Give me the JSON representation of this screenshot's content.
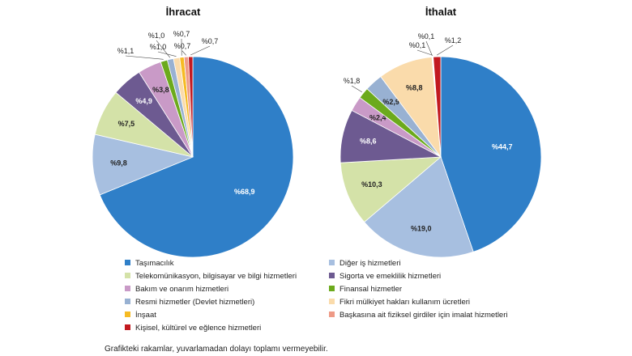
{
  "chart_data": [
    {
      "type": "pie",
      "title": "İhracat",
      "slices": [
        {
          "category": "Taşımacılık",
          "value": 68.9,
          "label": "%68,9"
        },
        {
          "category": "Diğer iş hizmetleri",
          "value": 9.8,
          "label": "%9,8"
        },
        {
          "category": "Telekomünikasyon, bilgisayar ve bilgi hizmetleri",
          "value": 7.5,
          "label": "%7,5"
        },
        {
          "category": "Sigorta ve emeklilik hizmetleri",
          "value": 4.9,
          "label": "%4,9"
        },
        {
          "category": "Bakım ve onarım hizmetleri",
          "value": 3.8,
          "label": "%3,8"
        },
        {
          "category": "Finansal hizmetler",
          "value": 1.1,
          "label": "%1,1"
        },
        {
          "category": "Resmi hizmetler (Devlet hizmetleri)",
          "value": 1.0,
          "label": "%1,0"
        },
        {
          "category": "Fikri mülkiyet hakları kullanım ücretleri",
          "value": 1.0,
          "label": "%1,0"
        },
        {
          "category": "İnşaat",
          "value": 0.7,
          "label": "%0,7"
        },
        {
          "category": "Başkasına ait fiziksel girdiler için imalat hizmetleri",
          "value": 0.7,
          "label": "%0,7"
        },
        {
          "category": "Kişisel, kültürel ve eğlence hizmetleri",
          "value": 0.7,
          "label": "%0,7"
        }
      ]
    },
    {
      "type": "pie",
      "title": "İthalat",
      "slices": [
        {
          "category": "Taşımacılık",
          "value": 44.7,
          "label": "%44,7"
        },
        {
          "category": "Diğer iş hizmetleri",
          "value": 19.0,
          "label": "%19,0"
        },
        {
          "category": "Telekomünikasyon, bilgisayar ve bilgi hizmetleri",
          "value": 10.3,
          "label": "%10,3"
        },
        {
          "category": "Sigorta ve emeklilik hizmetleri",
          "value": 8.6,
          "label": "%8,6"
        },
        {
          "category": "Bakım ve onarım hizmetleri",
          "value": 2.4,
          "label": "%2,4"
        },
        {
          "category": "Finansal hizmetler",
          "value": 1.8,
          "label": "%1,8"
        },
        {
          "category": "Resmi hizmetler (Devlet hizmetleri)",
          "value": 2.9,
          "label": "%2,9"
        },
        {
          "category": "Fikri mülkiyet hakları kullanım ücretleri",
          "value": 8.8,
          "label": "%8,8"
        },
        {
          "category": "İnşaat",
          "value": 0.1,
          "label": "%0,1"
        },
        {
          "category": "Başkasına ait fiziksel girdiler için imalat hizmetleri",
          "value": 0.1,
          "label": "%0,1"
        },
        {
          "category": "Kişisel, kültürel ve eğlence hizmetleri",
          "value": 1.2,
          "label": "%1,2"
        }
      ]
    }
  ],
  "legend": [
    {
      "label": "Taşımacılık",
      "color": "#2f7fc8"
    },
    {
      "label": "Diğer iş hizmetleri",
      "color": "#a7bfe0"
    },
    {
      "label": "Telekomünikasyon, bilgisayar ve bilgi hizmetleri",
      "color": "#d4e2a8"
    },
    {
      "label": "Sigorta ve emeklilik hizmetleri",
      "color": "#6d5a91"
    },
    {
      "label": "Bakım ve onarım hizmetleri",
      "color": "#c99ac7"
    },
    {
      "label": "Finansal hizmetler",
      "color": "#6caa1c"
    },
    {
      "label": "Resmi hizmetler (Devlet hizmetleri)",
      "color": "#98b1d2"
    },
    {
      "label": "Fikri mülkiyet hakları kullanım ücretleri",
      "color": "#fadbab"
    },
    {
      "label": "İnşaat",
      "color": "#f6bb23"
    },
    {
      "label": "Başkasına ait fiziksel girdiler için imalat hizmetleri",
      "color": "#ee9a86"
    },
    {
      "label": "Kişisel, kültürel ve eğlence hizmetleri",
      "color": "#c2191f"
    }
  ],
  "footnote": "Grafikteki rakamlar, yuvarlamadan dolayı toplamı vermeyebilir."
}
